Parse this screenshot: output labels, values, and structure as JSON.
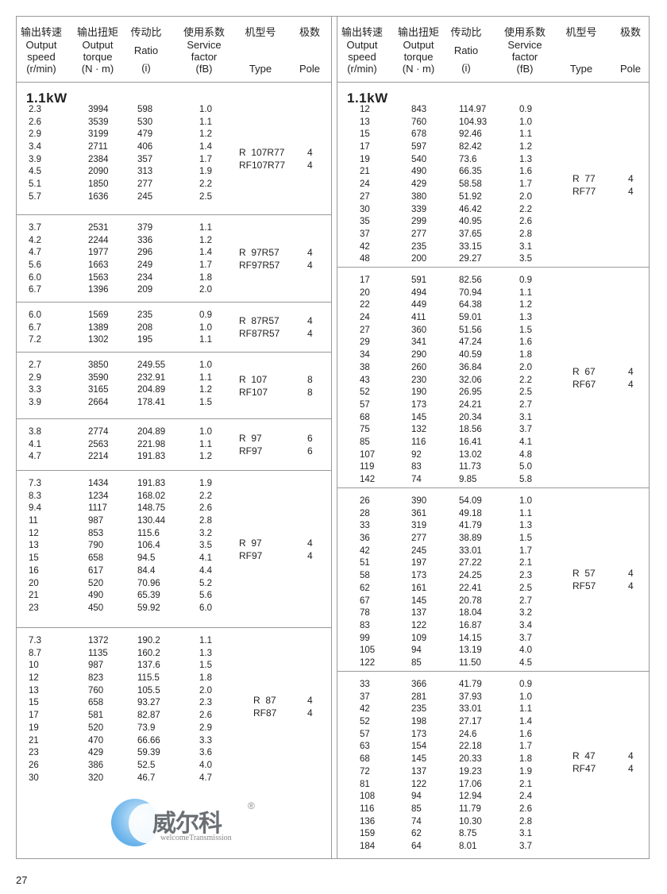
{
  "header": {
    "speed": {
      "cn": "输出转速",
      "en1": "Output",
      "en2": "speed",
      "unit": "(r/min)"
    },
    "torque": {
      "cn": "输出扭矩",
      "en1": "Output",
      "en2": "torque",
      "unit": "(N · m)"
    },
    "ratio": {
      "cn": "传动比",
      "en1": "Ratio",
      "unit": "(i)"
    },
    "sf": {
      "cn": "使用系数",
      "en1": "Service",
      "en2": "factor",
      "unit": "(fB)"
    },
    "type": {
      "cn": "机型号",
      "en1": "Type"
    },
    "pole": {
      "cn": "极数",
      "en1": "Pole"
    }
  },
  "power_label": "1.1kW",
  "left": {
    "blocks": [
      {
        "rows": [
          [
            "2.3",
            "3994",
            "598",
            "1.0"
          ],
          [
            "2.6",
            "3539",
            "530",
            "1.1"
          ],
          [
            "2.9",
            "3199",
            "479",
            "1.2"
          ],
          [
            "3.4",
            "2711",
            "406",
            "1.4"
          ],
          [
            "3.9",
            "2384",
            "357",
            "1.7"
          ],
          [
            "4.5",
            "2090",
            "313",
            "1.9"
          ],
          [
            "5.1",
            "1850",
            "277",
            "2.2"
          ],
          [
            "5.7",
            "1636",
            "245",
            "2.5"
          ]
        ],
        "type": [
          "R  107R77",
          "RF107R77"
        ],
        "pole": [
          "4",
          "4"
        ]
      },
      {
        "rows": [
          [
            "3.7",
            "2531",
            "379",
            "1.1"
          ],
          [
            "4.2",
            "2244",
            "336",
            "1.2"
          ],
          [
            "4.7",
            "1977",
            "296",
            "1.4"
          ],
          [
            "5.6",
            "1663",
            "249",
            "1.7"
          ],
          [
            "6.0",
            "1563",
            "234",
            "1.8"
          ],
          [
            "6.7",
            "1396",
            "209",
            "2.0"
          ]
        ],
        "type": [
          "R  97R57",
          "RF97R57"
        ],
        "pole": [
          "4",
          "4"
        ]
      },
      {
        "rows": [
          [
            "6.0",
            "1569",
            "235",
            "0.9"
          ],
          [
            "6.7",
            "1389",
            "208",
            "1.0"
          ],
          [
            "7.2",
            "1302",
            "195",
            "1.1"
          ]
        ],
        "type": [
          "R  87R57",
          "RF87R57"
        ],
        "pole": [
          "4",
          "4"
        ]
      },
      {
        "rows": [
          [
            "2.7",
            "3850",
            "249.55",
            "1.0"
          ],
          [
            "2.9",
            "3590",
            "232.91",
            "1.1"
          ],
          [
            "3.3",
            "3165",
            "204.89",
            "1.2"
          ],
          [
            "3.9",
            "2664",
            "178.41",
            "1.5"
          ]
        ],
        "type": [
          "R  107",
          "RF107"
        ],
        "pole": [
          "8",
          "8"
        ]
      },
      {
        "rows": [
          [
            "3.8",
            "2774",
            "204.89",
            "1.0"
          ],
          [
            "4.1",
            "2563",
            "221.98",
            "1.1"
          ],
          [
            "4.7",
            "2214",
            "191.83",
            "1.2"
          ]
        ],
        "type": [
          "R  97",
          "RF97"
        ],
        "pole": [
          "6",
          "6"
        ]
      },
      {
        "rows": [
          [
            "7.3",
            "1434",
            "191.83",
            "1.9"
          ],
          [
            "8.3",
            "1234",
            "168.02",
            "2.2"
          ],
          [
            "9.4",
            "1117",
            "148.75",
            "2.6"
          ],
          [
            "11",
            "987",
            "130.44",
            "2.8"
          ],
          [
            "12",
            "853",
            "115.6",
            "3.2"
          ],
          [
            "13",
            "790",
            "106.4",
            "3.5"
          ],
          [
            "15",
            "658",
            "94.5",
            "4.1"
          ],
          [
            "16",
            "617",
            "84.4",
            "4.4"
          ],
          [
            "20",
            "520",
            "70.96",
            "5.2"
          ],
          [
            "21",
            "490",
            "65.39",
            "5.6"
          ],
          [
            "23",
            "450",
            "59.92",
            "6.0"
          ]
        ],
        "type": [
          "R  97",
          "RF97"
        ],
        "pole": [
          "4",
          "4"
        ]
      },
      {
        "rows": [
          [
            "7.3",
            "1372",
            "190.2",
            "1.1"
          ],
          [
            "8.7",
            "1135",
            "160.2",
            "1.3"
          ],
          [
            "10",
            "987",
            "137.6",
            "1.5"
          ],
          [
            "12",
            "823",
            "115.5",
            "1.8"
          ],
          [
            "13",
            "760",
            "105.5",
            "2.0"
          ],
          [
            "15",
            "658",
            "93.27",
            "2.3"
          ],
          [
            "17",
            "581",
            "82.87",
            "2.6"
          ],
          [
            "19",
            "520",
            "73.9",
            "2.9"
          ],
          [
            "21",
            "470",
            "66.66",
            "3.3"
          ],
          [
            "23",
            "429",
            "59.39",
            "3.6"
          ],
          [
            "26",
            "386",
            "52.5",
            "4.0"
          ],
          [
            "30",
            "320",
            "46.7",
            "4.7"
          ]
        ],
        "type": [
          "R  87",
          "RF87"
        ],
        "pole": [
          "4",
          "4"
        ]
      }
    ]
  },
  "right": {
    "blocks": [
      {
        "rows": [
          [
            "12",
            "843",
            "114.97",
            "0.9"
          ],
          [
            "13",
            "760",
            "104.93",
            "1.0"
          ],
          [
            "15",
            "678",
            "92.46",
            "1.1"
          ],
          [
            "17",
            "597",
            "82.42",
            "1.2"
          ],
          [
            "19",
            "540",
            "73.6",
            "1.3"
          ],
          [
            "21",
            "490",
            "66.35",
            "1.6"
          ],
          [
            "24",
            "429",
            "58.58",
            "1.7"
          ],
          [
            "27",
            "380",
            "51.92",
            "2.0"
          ],
          [
            "30",
            "339",
            "46.42",
            "2.2"
          ],
          [
            "35",
            "299",
            "40.95",
            "2.6"
          ],
          [
            "37",
            "277",
            "37.65",
            "2.8"
          ],
          [
            "42",
            "235",
            "33.15",
            "3.1"
          ],
          [
            "48",
            "200",
            "29.27",
            "3.5"
          ]
        ],
        "type": [
          "R  77",
          "RF77"
        ],
        "pole": [
          "4",
          "4"
        ]
      },
      {
        "rows": [
          [
            "17",
            "591",
            "82.56",
            "0.9"
          ],
          [
            "20",
            "494",
            "70.94",
            "1.1"
          ],
          [
            "22",
            "449",
            "64.38",
            "1.2"
          ],
          [
            "24",
            "411",
            "59.01",
            "1.3"
          ],
          [
            "27",
            "360",
            "51.56",
            "1.5"
          ],
          [
            "29",
            "341",
            "47.24",
            "1.6"
          ],
          [
            "34",
            "290",
            "40.59",
            "1.8"
          ],
          [
            "38",
            "260",
            "36.84",
            "2.0"
          ],
          [
            "43",
            "230",
            "32.06",
            "2.2"
          ],
          [
            "52",
            "190",
            "26.95",
            "2.5"
          ],
          [
            "57",
            "173",
            "24.21",
            "2.7"
          ],
          [
            "68",
            "145",
            "20.34",
            "3.1"
          ],
          [
            "75",
            "132",
            "18.56",
            "3.7"
          ],
          [
            "85",
            "116",
            "16.41",
            "4.1"
          ],
          [
            "107",
            "92",
            "13.02",
            "4.8"
          ],
          [
            "119",
            "83",
            "11.73",
            "5.0"
          ],
          [
            "142",
            "74",
            "9.85",
            "5.8"
          ]
        ],
        "type": [
          "R  67",
          "RF67"
        ],
        "pole": [
          "4",
          "4"
        ]
      },
      {
        "rows": [
          [
            "26",
            "390",
            "54.09",
            "1.0"
          ],
          [
            "28",
            "361",
            "49.18",
            "1.1"
          ],
          [
            "33",
            "319",
            "41.79",
            "1.3"
          ],
          [
            "36",
            "277",
            "38.89",
            "1.5"
          ],
          [
            "42",
            "245",
            "33.01",
            "1.7"
          ],
          [
            "51",
            "197",
            "27.22",
            "2.1"
          ],
          [
            "58",
            "173",
            "24.25",
            "2.3"
          ],
          [
            "62",
            "161",
            "22.41",
            "2.5"
          ],
          [
            "67",
            "145",
            "20.78",
            "2.7"
          ],
          [
            "78",
            "137",
            "18.04",
            "3.2"
          ],
          [
            "83",
            "122",
            "16.87",
            "3.4"
          ],
          [
            "99",
            "109",
            "14.15",
            "3.7"
          ],
          [
            "105",
            "94",
            "13.19",
            "4.0"
          ],
          [
            "122",
            "85",
            "11.50",
            "4.5"
          ]
        ],
        "type": [
          "R  57",
          "RF57"
        ],
        "pole": [
          "4",
          "4"
        ]
      },
      {
        "rows": [
          [
            "33",
            "366",
            "41.79",
            "0.9"
          ],
          [
            "37",
            "281",
            "37.93",
            "1.0"
          ],
          [
            "42",
            "235",
            "33.01",
            "1.1"
          ],
          [
            "52",
            "198",
            "27.17",
            "1.4"
          ],
          [
            "57",
            "173",
            "24.6",
            "1.6"
          ],
          [
            "63",
            "154",
            "22.18",
            "1.7"
          ],
          [
            "68",
            "145",
            "20.33",
            "1.8"
          ],
          [
            "72",
            "137",
            "19.23",
            "1.9"
          ],
          [
            "81",
            "122",
            "17.06",
            "2.1"
          ],
          [
            "108",
            "94",
            "12.94",
            "2.4"
          ],
          [
            "116",
            "85",
            "11.79",
            "2.6"
          ],
          [
            "136",
            "74",
            "10.30",
            "2.8"
          ],
          [
            "159",
            "62",
            "8.75",
            "3.1"
          ],
          [
            "184",
            "64",
            "8.01",
            "3.7"
          ]
        ],
        "type": [
          "R  47",
          "RF47"
        ],
        "pole": [
          "4",
          "4"
        ]
      }
    ]
  },
  "watermark": {
    "cn": "威尔科",
    "en": "welcomeTransmission",
    "reg": "®",
    "color": "#4aa3e6"
  },
  "page_number": "27"
}
